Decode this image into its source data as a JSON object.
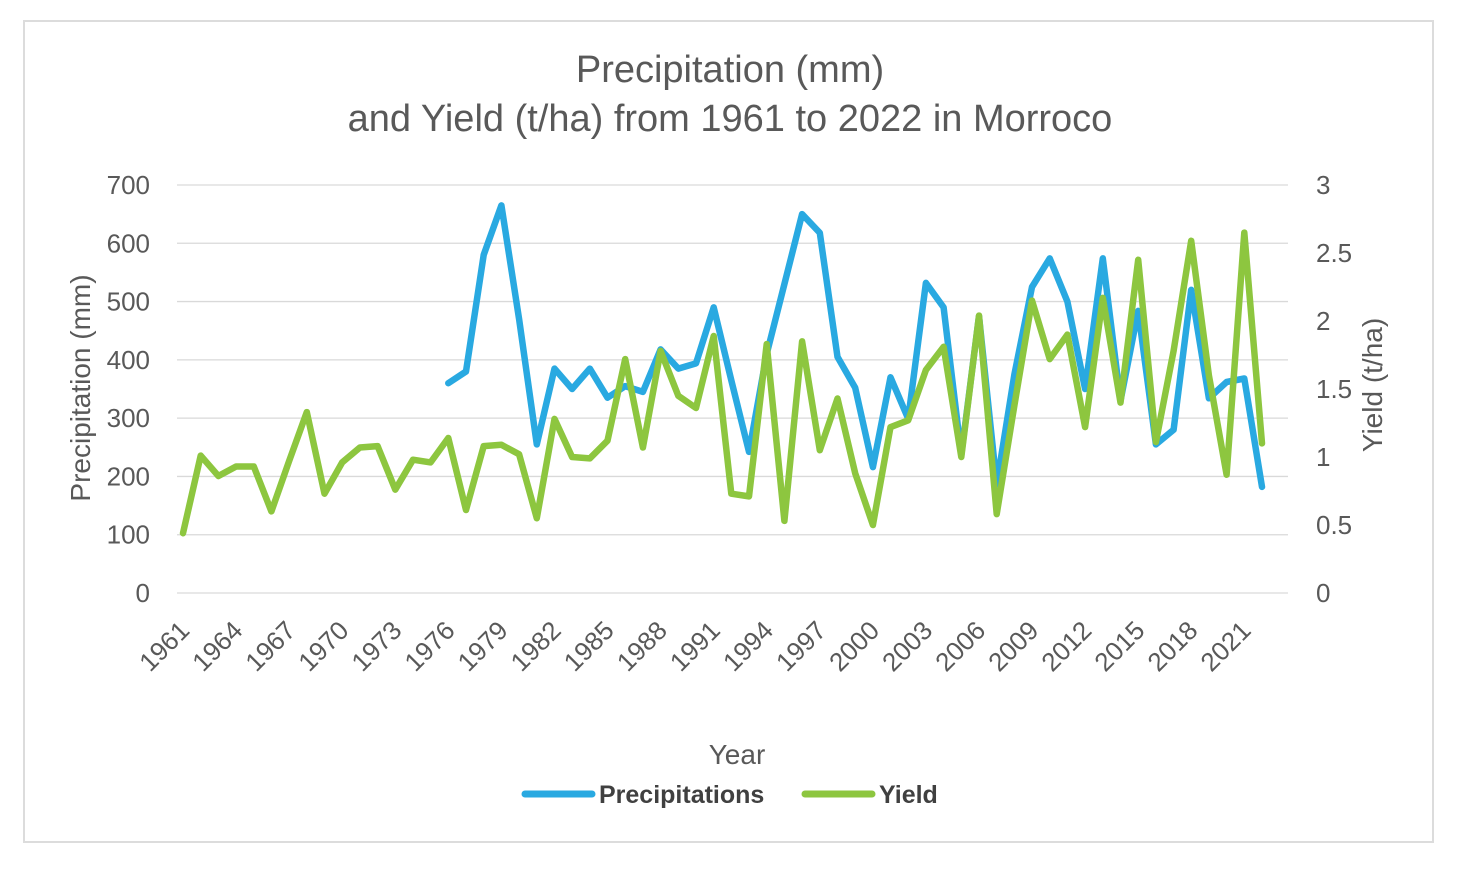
{
  "title": {
    "line1": "Precipitation (mm)",
    "line2": "and Yield (t/ha) from 1961 to 2022 in Morroco"
  },
  "colors": {
    "precipitation_line": "#29A9E1",
    "yield_line": "#8DC63F",
    "gridline": "#D9D9D9",
    "axis_text": "#595959",
    "legend_text": "#404040",
    "frame_border": "#DCDCDC"
  },
  "axes": {
    "x": {
      "title": "Year",
      "tick_labels": [
        "1961",
        "1964",
        "1967",
        "1970",
        "1973",
        "1976",
        "1979",
        "1982",
        "1985",
        "1988",
        "1991",
        "1994",
        "1997",
        "2000",
        "2003",
        "2006",
        "2009",
        "2012",
        "2015",
        "2018",
        "2021"
      ]
    },
    "y_left": {
      "title": "Precipitation (mm)",
      "min": 0,
      "max": 700,
      "step": 100,
      "tick_labels": [
        "0",
        "100",
        "200",
        "300",
        "400",
        "500",
        "600",
        "700"
      ]
    },
    "y_right": {
      "title": "Yield (t/ha)",
      "min": 0,
      "max": 3,
      "step": 0.5,
      "tick_labels": [
        "0",
        "0.5",
        "1",
        "1.5",
        "2",
        "2.5",
        "3"
      ]
    }
  },
  "legend": {
    "position": "bottom",
    "items": [
      {
        "label": "Precipitations",
        "color": "#29A9E1"
      },
      {
        "label": "Yield",
        "color": "#8DC63F"
      }
    ]
  },
  "chart_data": {
    "type": "line",
    "title": "Precipitation (mm) and Yield (t/ha) from 1961 to 2022 in Morroco",
    "xlabel": "Year",
    "ylabel_left": "Precipitation (mm)",
    "ylabel_right": "Yield (t/ha)",
    "ylim_left": [
      0,
      700
    ],
    "ylim_right": [
      0,
      3
    ],
    "grid": "horizontal",
    "x": [
      1961,
      1962,
      1963,
      1964,
      1965,
      1966,
      1967,
      1968,
      1969,
      1970,
      1971,
      1972,
      1973,
      1974,
      1975,
      1976,
      1977,
      1978,
      1979,
      1980,
      1981,
      1982,
      1983,
      1984,
      1985,
      1986,
      1987,
      1988,
      1989,
      1990,
      1991,
      1992,
      1993,
      1994,
      1995,
      1996,
      1997,
      1998,
      1999,
      2000,
      2001,
      2002,
      2003,
      2004,
      2005,
      2006,
      2007,
      2008,
      2009,
      2010,
      2011,
      2012,
      2013,
      2014,
      2015,
      2016,
      2017,
      2018,
      2019,
      2020,
      2021,
      2022
    ],
    "series": [
      {
        "name": "Precipitations",
        "axis": "left",
        "color": "#29A9E1",
        "values": [
          null,
          null,
          null,
          null,
          null,
          null,
          null,
          null,
          null,
          null,
          null,
          null,
          null,
          null,
          null,
          360,
          380,
          580,
          665,
          470,
          255,
          385,
          350,
          385,
          335,
          355,
          345,
          418,
          385,
          394,
          490,
          365,
          242,
          410,
          530,
          650,
          618,
          405,
          352,
          216,
          370,
          299,
          532,
          490,
          237,
          475,
          186,
          375,
          525,
          574,
          500,
          350,
          574,
          330,
          484,
          255,
          280,
          520,
          334,
          362,
          368,
          182
        ]
      },
      {
        "name": "Yield",
        "axis": "right",
        "color": "#8DC63F",
        "values": [
          0.44,
          1.01,
          0.86,
          0.93,
          0.93,
          0.6,
          0.97,
          1.33,
          0.73,
          0.96,
          1.07,
          1.08,
          0.76,
          0.98,
          0.96,
          1.14,
          0.61,
          1.08,
          1.09,
          1.02,
          0.55,
          1.28,
          1.0,
          0.99,
          1.12,
          1.72,
          1.07,
          1.78,
          1.45,
          1.36,
          1.89,
          0.73,
          0.71,
          1.83,
          0.53,
          1.85,
          1.05,
          1.43,
          0.88,
          0.5,
          1.22,
          1.27,
          1.64,
          1.81,
          1.0,
          2.04,
          0.58,
          1.38,
          2.15,
          1.72,
          1.9,
          1.22,
          2.17,
          1.4,
          2.45,
          1.11,
          1.78,
          2.59,
          1.6,
          0.87,
          2.65,
          1.1
        ]
      }
    ]
  }
}
